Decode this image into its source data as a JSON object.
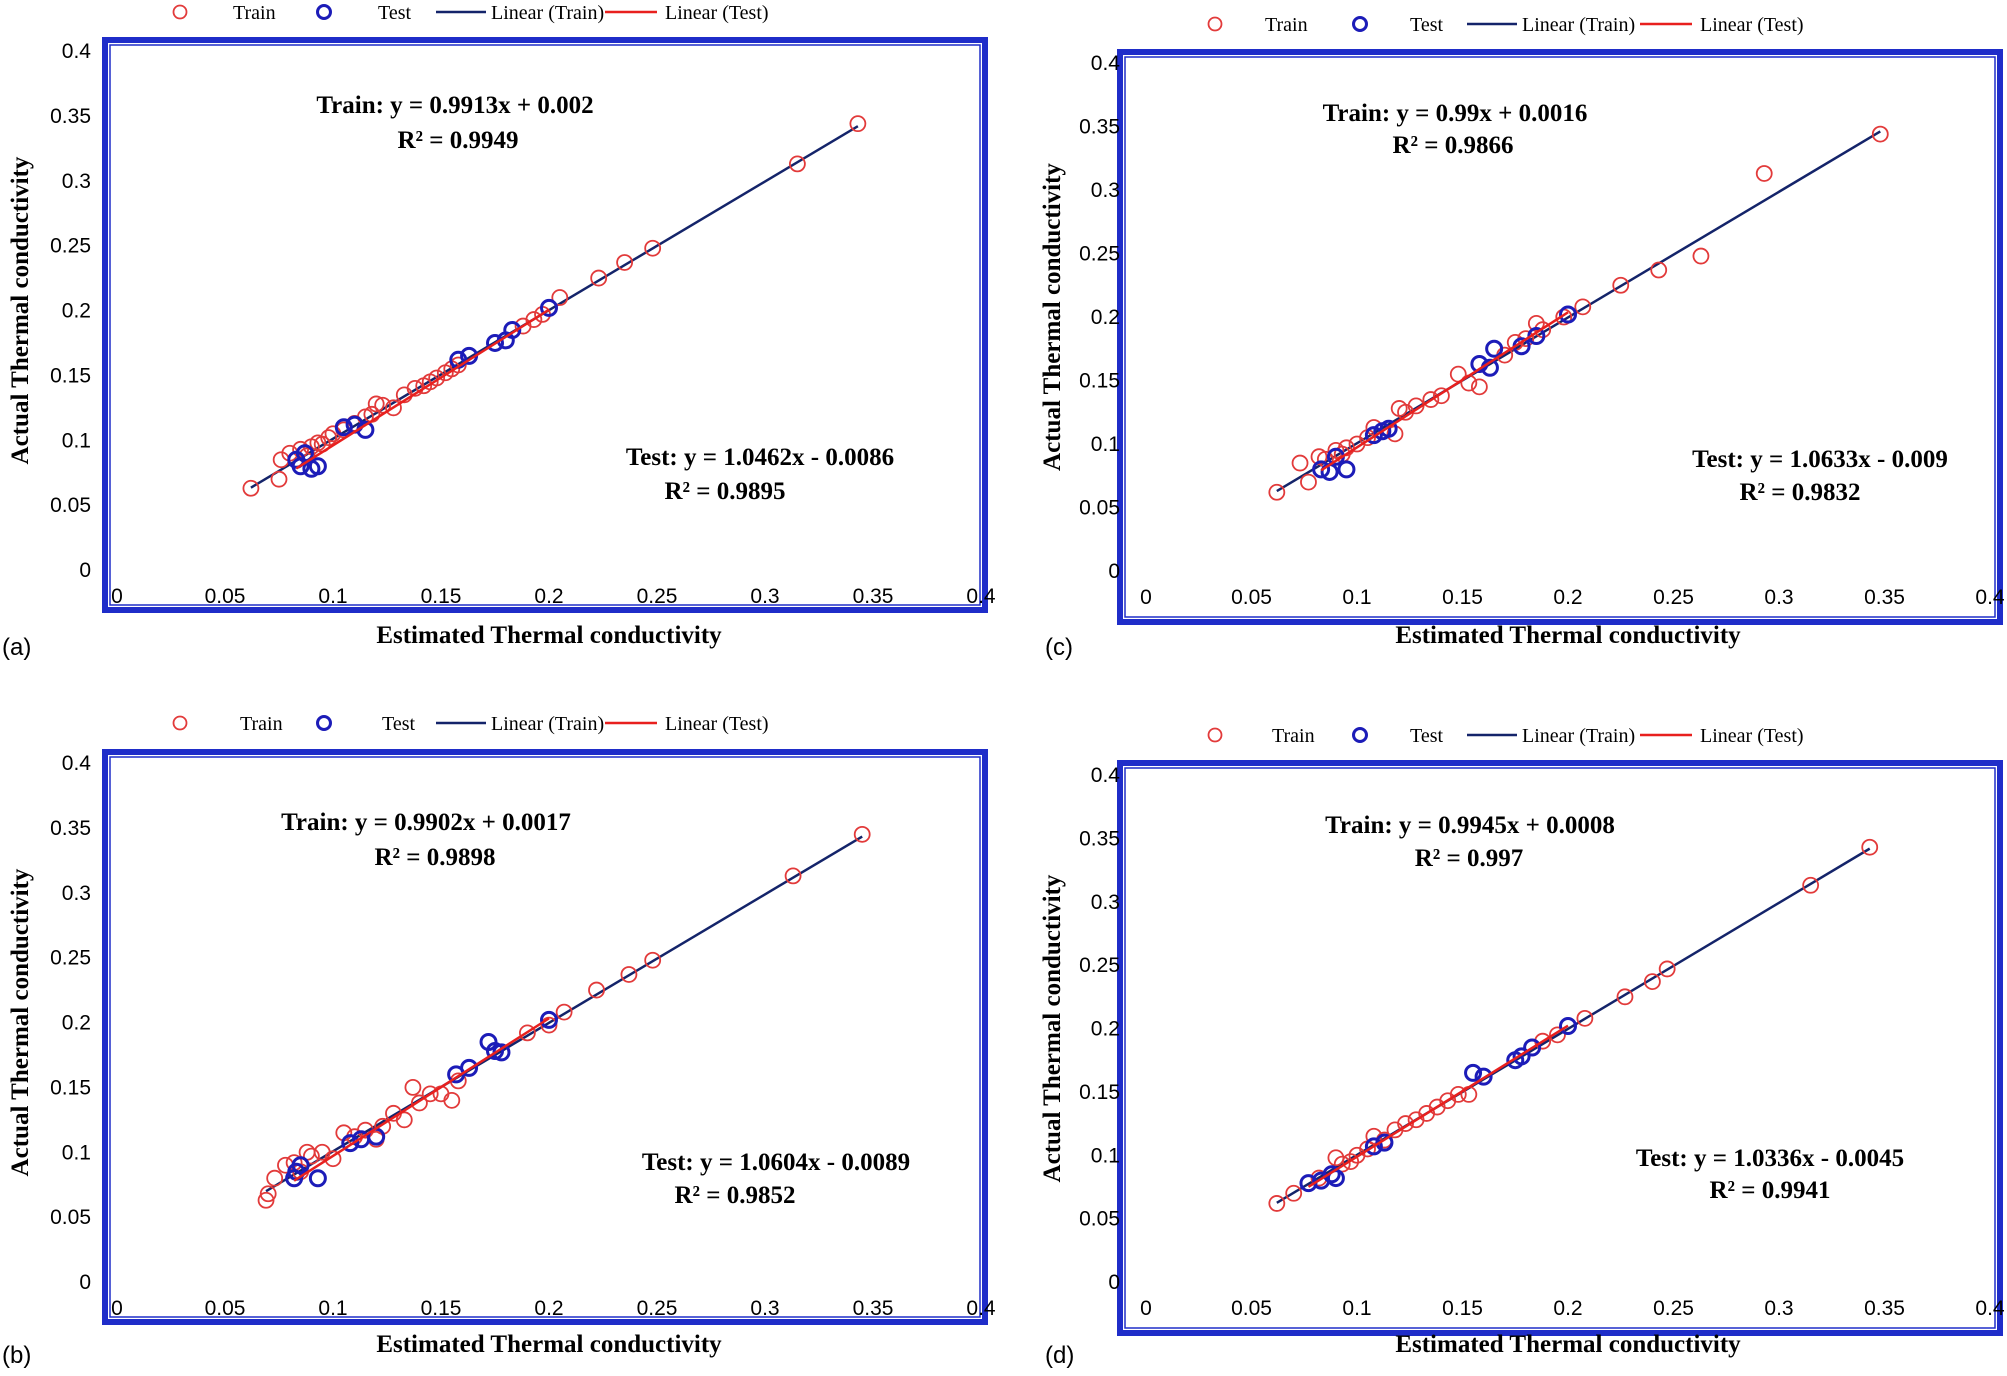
{
  "colors": {
    "train_marker": "#e23a3a",
    "test_marker": "#1c1cb8",
    "train_line": "#14246a",
    "test_line": "#e8201e",
    "frame": "#1f2dc9"
  },
  "chart_data": [
    {
      "panel_label": "(a)",
      "type": "scatter",
      "xlabel": "Estimated Thermal conductivity",
      "ylabel": "Actual Thermal conductivity",
      "xlim": [
        0,
        0.4
      ],
      "ylim": [
        0,
        0.4
      ],
      "x_ticks": [
        "0",
        "0.05",
        "0.1",
        "0.15",
        "0.2",
        "0.25",
        "0.3",
        "0.35",
        "0.4"
      ],
      "y_ticks": [
        "0",
        "0.05",
        "0.1",
        "0.15",
        "0.2",
        "0.25",
        "0.3",
        "0.35",
        "0.4"
      ],
      "legend": [
        "Train",
        "Test",
        "Linear (Train)",
        "Linear (Test)"
      ],
      "legend_position": "top",
      "train_equation": "Train: y = 0.9913x + 0.002",
      "train_r2": "R² = 0.9949",
      "test_equation": "Test: y = 1.0462x - 0.0086",
      "test_r2": "R² = 0.9895",
      "train_fit": {
        "slope": 0.9913,
        "intercept": 0.002,
        "x_range": [
          0.062,
          0.343
        ]
      },
      "test_fit": {
        "slope": 1.0462,
        "intercept": -0.0086,
        "x_range": [
          0.083,
          0.2
        ]
      },
      "train_points": [
        [
          0.062,
          0.063
        ],
        [
          0.075,
          0.07
        ],
        [
          0.076,
          0.085
        ],
        [
          0.08,
          0.09
        ],
        [
          0.085,
          0.093
        ],
        [
          0.088,
          0.088
        ],
        [
          0.09,
          0.095
        ],
        [
          0.093,
          0.098
        ],
        [
          0.095,
          0.097
        ],
        [
          0.098,
          0.102
        ],
        [
          0.1,
          0.105
        ],
        [
          0.105,
          0.108
        ],
        [
          0.11,
          0.113
        ],
        [
          0.115,
          0.118
        ],
        [
          0.118,
          0.12
        ],
        [
          0.12,
          0.128
        ],
        [
          0.123,
          0.127
        ],
        [
          0.128,
          0.125
        ],
        [
          0.133,
          0.135
        ],
        [
          0.138,
          0.14
        ],
        [
          0.142,
          0.142
        ],
        [
          0.145,
          0.145
        ],
        [
          0.148,
          0.148
        ],
        [
          0.152,
          0.152
        ],
        [
          0.155,
          0.155
        ],
        [
          0.158,
          0.158
        ],
        [
          0.188,
          0.188
        ],
        [
          0.193,
          0.193
        ],
        [
          0.197,
          0.197
        ],
        [
          0.205,
          0.21
        ],
        [
          0.223,
          0.225
        ],
        [
          0.235,
          0.237
        ],
        [
          0.248,
          0.248
        ],
        [
          0.315,
          0.313
        ],
        [
          0.343,
          0.344
        ]
      ],
      "test_points": [
        [
          0.083,
          0.085
        ],
        [
          0.085,
          0.08
        ],
        [
          0.087,
          0.09
        ],
        [
          0.09,
          0.078
        ],
        [
          0.093,
          0.08
        ],
        [
          0.105,
          0.11
        ],
        [
          0.11,
          0.112
        ],
        [
          0.115,
          0.108
        ],
        [
          0.158,
          0.162
        ],
        [
          0.163,
          0.165
        ],
        [
          0.175,
          0.175
        ],
        [
          0.18,
          0.177
        ],
        [
          0.183,
          0.185
        ],
        [
          0.2,
          0.202
        ]
      ]
    },
    {
      "panel_label": "(c)",
      "type": "scatter",
      "xlabel": "Estimated Thermal conductivity",
      "ylabel": "Actual Thermal conductivity",
      "xlim": [
        0,
        0.4
      ],
      "ylim": [
        0,
        0.4
      ],
      "x_ticks": [
        "0",
        "0.05",
        "0.1",
        "0.15",
        "0.2",
        "0.25",
        "0.3",
        "0.35",
        "0.4"
      ],
      "y_ticks": [
        "0",
        "0.05",
        "0.1",
        "0.15",
        "0.2",
        "0.25",
        "0.3",
        "0.35",
        "0.4"
      ],
      "legend": [
        "Train",
        "Test",
        "Linear (Train)",
        "Linear (Test)"
      ],
      "legend_position": "top",
      "train_equation": "Train: y = 0.99x + 0.0016",
      "train_r2": "R² = 0.9866",
      "test_equation": "Test: y = 1.0633x - 0.009",
      "test_r2": "R² = 0.9832",
      "train_fit": {
        "slope": 0.99,
        "intercept": 0.0016,
        "x_range": [
          0.062,
          0.348
        ]
      },
      "test_fit": {
        "slope": 1.0633,
        "intercept": -0.009,
        "x_range": [
          0.083,
          0.2
        ]
      },
      "train_points": [
        [
          0.062,
          0.062
        ],
        [
          0.073,
          0.085
        ],
        [
          0.077,
          0.07
        ],
        [
          0.082,
          0.09
        ],
        [
          0.085,
          0.088
        ],
        [
          0.09,
          0.095
        ],
        [
          0.093,
          0.092
        ],
        [
          0.095,
          0.097
        ],
        [
          0.1,
          0.1
        ],
        [
          0.105,
          0.105
        ],
        [
          0.108,
          0.113
        ],
        [
          0.112,
          0.11
        ],
        [
          0.118,
          0.108
        ],
        [
          0.12,
          0.128
        ],
        [
          0.123,
          0.125
        ],
        [
          0.128,
          0.13
        ],
        [
          0.135,
          0.135
        ],
        [
          0.14,
          0.138
        ],
        [
          0.148,
          0.155
        ],
        [
          0.153,
          0.148
        ],
        [
          0.158,
          0.145
        ],
        [
          0.163,
          0.16
        ],
        [
          0.17,
          0.17
        ],
        [
          0.175,
          0.18
        ],
        [
          0.18,
          0.183
        ],
        [
          0.185,
          0.195
        ],
        [
          0.188,
          0.19
        ],
        [
          0.198,
          0.2
        ],
        [
          0.207,
          0.208
        ],
        [
          0.225,
          0.225
        ],
        [
          0.243,
          0.237
        ],
        [
          0.263,
          0.248
        ],
        [
          0.293,
          0.313
        ],
        [
          0.348,
          0.344
        ]
      ],
      "test_points": [
        [
          0.083,
          0.08
        ],
        [
          0.087,
          0.078
        ],
        [
          0.09,
          0.09
        ],
        [
          0.095,
          0.08
        ],
        [
          0.108,
          0.107
        ],
        [
          0.112,
          0.11
        ],
        [
          0.115,
          0.112
        ],
        [
          0.158,
          0.163
        ],
        [
          0.163,
          0.16
        ],
        [
          0.165,
          0.175
        ],
        [
          0.178,
          0.177
        ],
        [
          0.185,
          0.185
        ],
        [
          0.2,
          0.202
        ]
      ]
    },
    {
      "panel_label": "(b)",
      "type": "scatter",
      "xlabel": "Estimated Thermal conductivity",
      "ylabel": "Actual Thermal conductivity",
      "xlim": [
        0,
        0.4
      ],
      "ylim": [
        0,
        0.4
      ],
      "x_ticks": [
        "0",
        "0.05",
        "0.1",
        "0.15",
        "0.2",
        "0.25",
        "0.3",
        "0.35",
        "0.4"
      ],
      "y_ticks": [
        "0",
        "0.05",
        "0.1",
        "0.15",
        "0.2",
        "0.25",
        "0.3",
        "0.35",
        "0.4"
      ],
      "legend": [
        "Train",
        "Test",
        "Linear (Train)",
        "Linear (Test)"
      ],
      "legend_position": "top",
      "train_equation": "Train: y = 0.9902x + 0.0017",
      "train_r2": "R² = 0.9898",
      "test_equation": "Test: y = 1.0604x - 0.0089",
      "test_r2": "R² = 0.9852",
      "train_fit": {
        "slope": 0.9902,
        "intercept": 0.0017,
        "x_range": [
          0.069,
          0.345
        ]
      },
      "test_fit": {
        "slope": 1.0604,
        "intercept": -0.0089,
        "x_range": [
          0.082,
          0.2
        ]
      },
      "train_points": [
        [
          0.069,
          0.063
        ],
        [
          0.07,
          0.068
        ],
        [
          0.073,
          0.08
        ],
        [
          0.078,
          0.09
        ],
        [
          0.082,
          0.092
        ],
        [
          0.085,
          0.085
        ],
        [
          0.088,
          0.1
        ],
        [
          0.09,
          0.097
        ],
        [
          0.095,
          0.1
        ],
        [
          0.1,
          0.095
        ],
        [
          0.105,
          0.115
        ],
        [
          0.11,
          0.112
        ],
        [
          0.115,
          0.117
        ],
        [
          0.12,
          0.11
        ],
        [
          0.123,
          0.12
        ],
        [
          0.128,
          0.13
        ],
        [
          0.133,
          0.125
        ],
        [
          0.137,
          0.15
        ],
        [
          0.14,
          0.138
        ],
        [
          0.145,
          0.145
        ],
        [
          0.15,
          0.145
        ],
        [
          0.155,
          0.14
        ],
        [
          0.158,
          0.155
        ],
        [
          0.19,
          0.192
        ],
        [
          0.2,
          0.198
        ],
        [
          0.207,
          0.208
        ],
        [
          0.222,
          0.225
        ],
        [
          0.237,
          0.237
        ],
        [
          0.248,
          0.248
        ],
        [
          0.313,
          0.313
        ],
        [
          0.345,
          0.345
        ]
      ],
      "test_points": [
        [
          0.082,
          0.08
        ],
        [
          0.083,
          0.085
        ],
        [
          0.085,
          0.09
        ],
        [
          0.093,
          0.08
        ],
        [
          0.108,
          0.107
        ],
        [
          0.113,
          0.11
        ],
        [
          0.12,
          0.112
        ],
        [
          0.157,
          0.16
        ],
        [
          0.163,
          0.165
        ],
        [
          0.172,
          0.185
        ],
        [
          0.175,
          0.178
        ],
        [
          0.178,
          0.177
        ],
        [
          0.2,
          0.202
        ]
      ]
    },
    {
      "panel_label": "(d)",
      "type": "scatter",
      "xlabel": "Estimated Thermal conductivity",
      "ylabel": "Actual Thermal conductivity",
      "xlim": [
        0,
        0.4
      ],
      "ylim": [
        0,
        0.4
      ],
      "x_ticks": [
        "0",
        "0.05",
        "0.1",
        "0.15",
        "0.2",
        "0.25",
        "0.3",
        "0.35",
        "0.4"
      ],
      "y_ticks": [
        "0",
        "0.05",
        "0.1",
        "0.15",
        "0.2",
        "0.25",
        "0.3",
        "0.35",
        "0.4"
      ],
      "legend": [
        "Train",
        "Test",
        "Linear (Train)",
        "Linear (Test)"
      ],
      "legend_position": "top",
      "train_equation": "Train: y = 0.9945x + 0.0008",
      "train_r2": "R² = 0.997",
      "test_equation": "Test: y = 1.0336x - 0.0045",
      "test_r2": "R² = 0.9941",
      "train_fit": {
        "slope": 0.9945,
        "intercept": 0.0008,
        "x_range": [
          0.062,
          0.343
        ]
      },
      "test_fit": {
        "slope": 1.0336,
        "intercept": -0.0045,
        "x_range": [
          0.077,
          0.2
        ]
      },
      "train_points": [
        [
          0.062,
          0.062
        ],
        [
          0.07,
          0.07
        ],
        [
          0.077,
          0.078
        ],
        [
          0.082,
          0.082
        ],
        [
          0.088,
          0.085
        ],
        [
          0.09,
          0.098
        ],
        [
          0.093,
          0.093
        ],
        [
          0.097,
          0.095
        ],
        [
          0.1,
          0.1
        ],
        [
          0.105,
          0.105
        ],
        [
          0.108,
          0.115
        ],
        [
          0.113,
          0.112
        ],
        [
          0.118,
          0.12
        ],
        [
          0.123,
          0.125
        ],
        [
          0.128,
          0.128
        ],
        [
          0.133,
          0.133
        ],
        [
          0.138,
          0.138
        ],
        [
          0.143,
          0.143
        ],
        [
          0.148,
          0.148
        ],
        [
          0.153,
          0.148
        ],
        [
          0.188,
          0.19
        ],
        [
          0.195,
          0.195
        ],
        [
          0.208,
          0.208
        ],
        [
          0.227,
          0.225
        ],
        [
          0.24,
          0.237
        ],
        [
          0.247,
          0.247
        ],
        [
          0.315,
          0.313
        ],
        [
          0.343,
          0.343
        ]
      ],
      "test_points": [
        [
          0.077,
          0.078
        ],
        [
          0.083,
          0.08
        ],
        [
          0.088,
          0.085
        ],
        [
          0.09,
          0.082
        ],
        [
          0.108,
          0.107
        ],
        [
          0.113,
          0.11
        ],
        [
          0.155,
          0.165
        ],
        [
          0.16,
          0.162
        ],
        [
          0.175,
          0.175
        ],
        [
          0.178,
          0.178
        ],
        [
          0.183,
          0.185
        ],
        [
          0.2,
          0.202
        ]
      ]
    }
  ]
}
